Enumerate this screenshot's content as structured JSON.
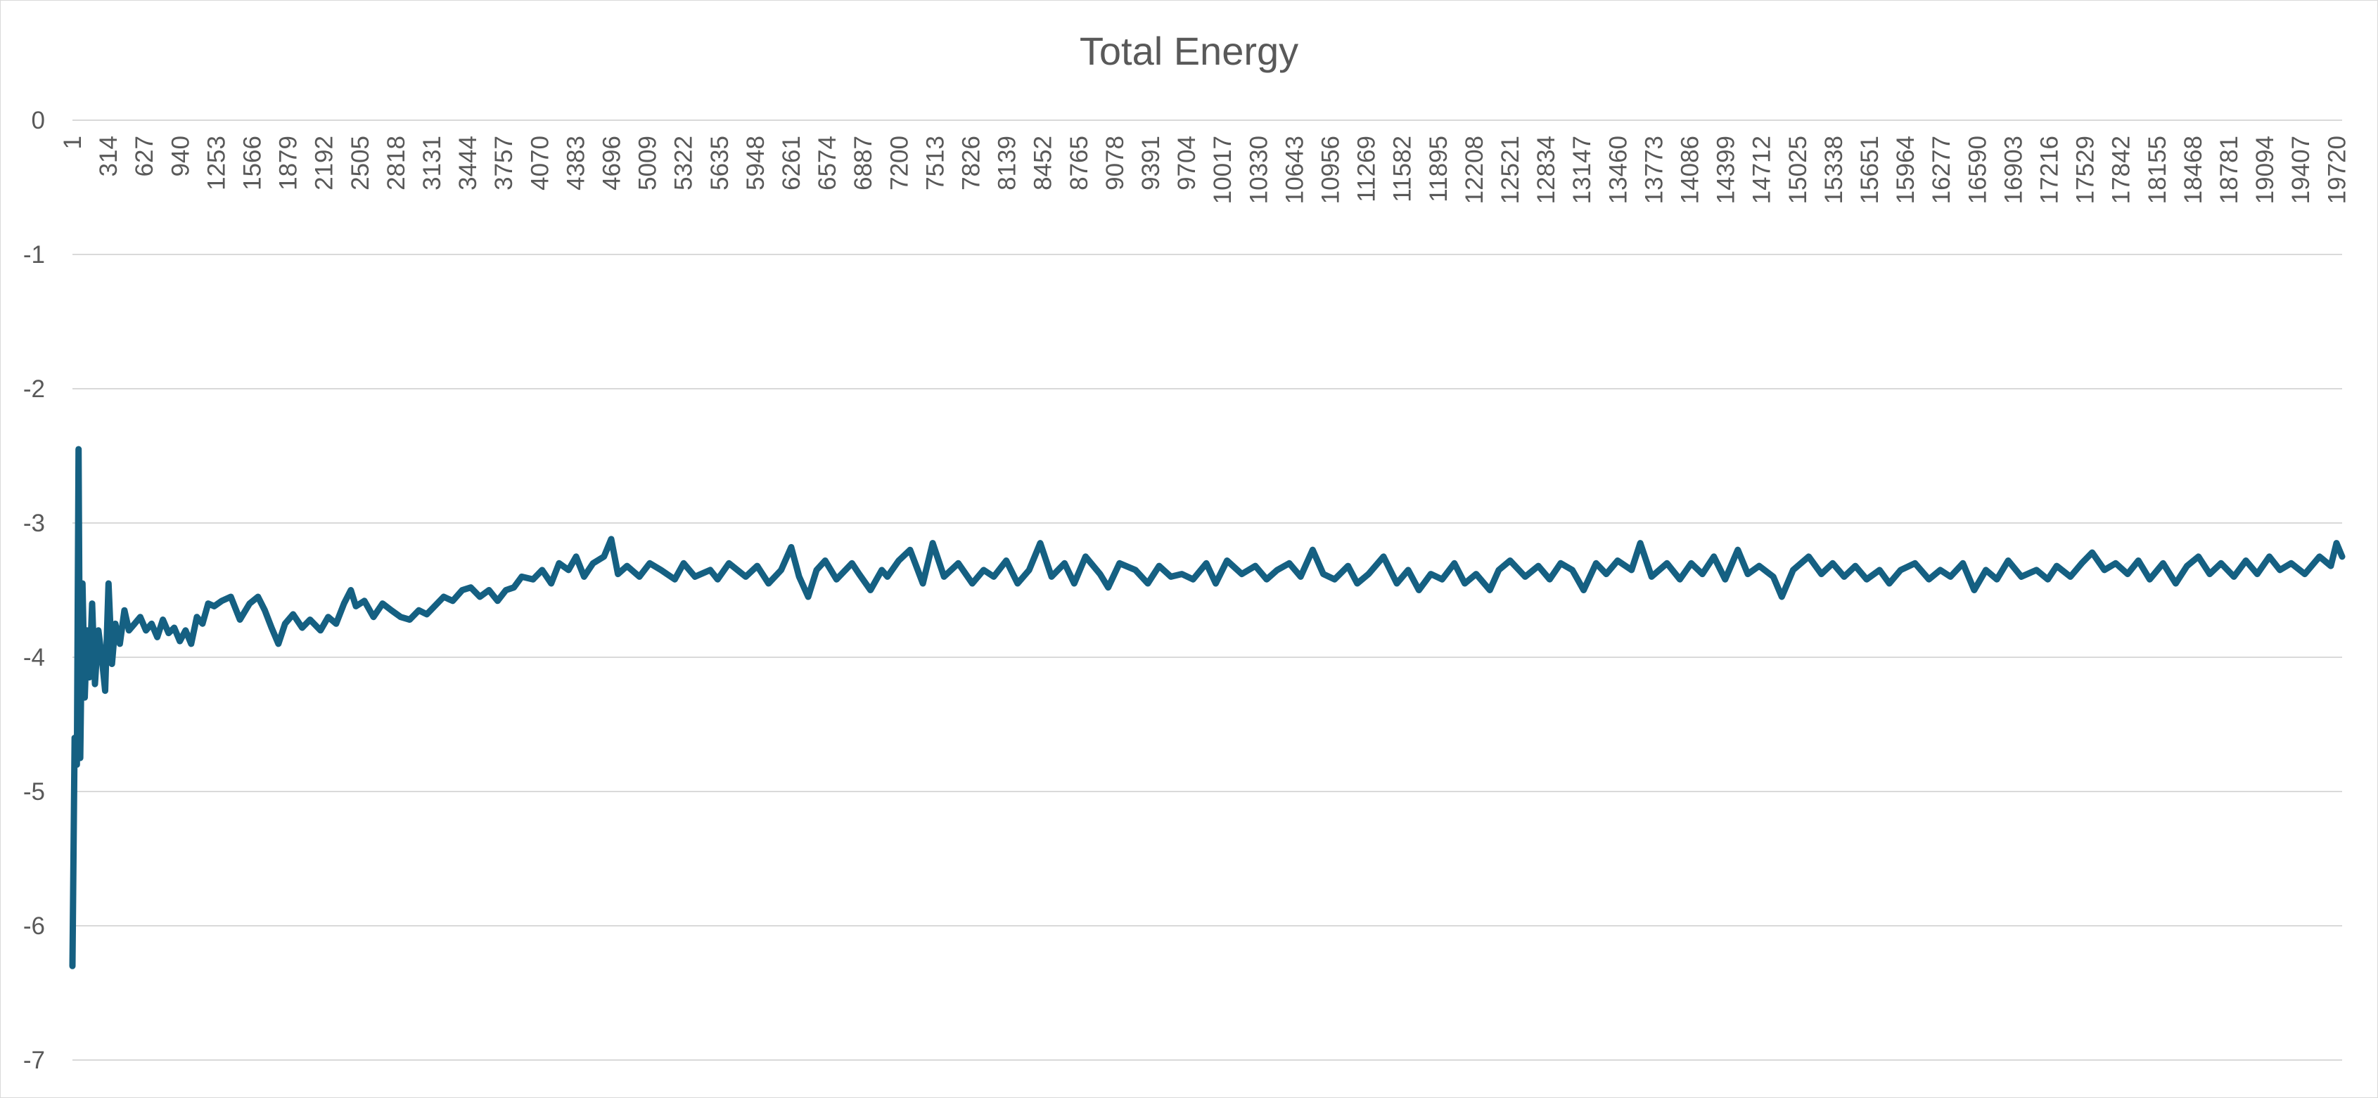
{
  "chart_data": {
    "type": "line",
    "title": "Total Energy",
    "xlabel": "",
    "ylabel": "",
    "ylim": [
      -7,
      0
    ],
    "y_ticks": [
      "0",
      "-1",
      "-2",
      "-3",
      "-4",
      "-5",
      "-6",
      "-7"
    ],
    "x_ticks": [
      "1",
      "314",
      "627",
      "940",
      "1253",
      "1566",
      "1879",
      "2192",
      "2505",
      "2818",
      "3131",
      "3444",
      "3757",
      "4070",
      "4383",
      "4696",
      "5009",
      "5322",
      "5635",
      "5948",
      "6261",
      "6574",
      "6887",
      "7200",
      "7513",
      "7826",
      "8139",
      "8452",
      "8765",
      "9078",
      "9391",
      "9704",
      "10017",
      "10330",
      "10643",
      "10956",
      "11269",
      "11582",
      "11895",
      "12208",
      "12521",
      "12834",
      "13147",
      "13460",
      "13773",
      "14086",
      "14399",
      "14712",
      "15025",
      "15338",
      "15651",
      "15964",
      "16277",
      "16590",
      "16903",
      "17216",
      "17529",
      "17842",
      "18155",
      "18468",
      "18781",
      "19094",
      "19407",
      "19720"
    ],
    "xlim": [
      1,
      20050
    ],
    "grid": true,
    "legend": "none",
    "series": [
      {
        "color": "#156082",
        "points": [
          [
            1,
            -6.3
          ],
          [
            20,
            -4.6
          ],
          [
            40,
            -4.8
          ],
          [
            55,
            -2.45
          ],
          [
            70,
            -4.75
          ],
          [
            90,
            -3.45
          ],
          [
            110,
            -4.3
          ],
          [
            130,
            -3.8
          ],
          [
            150,
            -4.15
          ],
          [
            175,
            -3.6
          ],
          [
            200,
            -4.2
          ],
          [
            230,
            -3.8
          ],
          [
            260,
            -4.0
          ],
          [
            290,
            -4.25
          ],
          [
            320,
            -3.45
          ],
          [
            350,
            -4.05
          ],
          [
            380,
            -3.75
          ],
          [
            420,
            -3.9
          ],
          [
            460,
            -3.65
          ],
          [
            500,
            -3.8
          ],
          [
            550,
            -3.75
          ],
          [
            600,
            -3.7
          ],
          [
            650,
            -3.8
          ],
          [
            700,
            -3.75
          ],
          [
            750,
            -3.85
          ],
          [
            800,
            -3.72
          ],
          [
            850,
            -3.82
          ],
          [
            900,
            -3.78
          ],
          [
            950,
            -3.88
          ],
          [
            1000,
            -3.8
          ],
          [
            1050,
            -3.9
          ],
          [
            1100,
            -3.7
          ],
          [
            1150,
            -3.75
          ],
          [
            1200,
            -3.6
          ],
          [
            1253,
            -3.62
          ],
          [
            1320,
            -3.58
          ],
          [
            1400,
            -3.55
          ],
          [
            1480,
            -3.72
          ],
          [
            1566,
            -3.6
          ],
          [
            1640,
            -3.55
          ],
          [
            1700,
            -3.65
          ],
          [
            1760,
            -3.78
          ],
          [
            1820,
            -3.9
          ],
          [
            1879,
            -3.75
          ],
          [
            1950,
            -3.68
          ],
          [
            2030,
            -3.78
          ],
          [
            2100,
            -3.72
          ],
          [
            2192,
            -3.8
          ],
          [
            2260,
            -3.7
          ],
          [
            2330,
            -3.75
          ],
          [
            2400,
            -3.6
          ],
          [
            2460,
            -3.5
          ],
          [
            2505,
            -3.62
          ],
          [
            2580,
            -3.58
          ],
          [
            2660,
            -3.7
          ],
          [
            2740,
            -3.6
          ],
          [
            2818,
            -3.65
          ],
          [
            2900,
            -3.7
          ],
          [
            2980,
            -3.72
          ],
          [
            3060,
            -3.65
          ],
          [
            3131,
            -3.68
          ],
          [
            3200,
            -3.62
          ],
          [
            3280,
            -3.55
          ],
          [
            3360,
            -3.58
          ],
          [
            3444,
            -3.5
          ],
          [
            3520,
            -3.48
          ],
          [
            3600,
            -3.55
          ],
          [
            3680,
            -3.5
          ],
          [
            3757,
            -3.58
          ],
          [
            3830,
            -3.5
          ],
          [
            3900,
            -3.48
          ],
          [
            3970,
            -3.4
          ],
          [
            4070,
            -3.42
          ],
          [
            4150,
            -3.35
          ],
          [
            4230,
            -3.45
          ],
          [
            4300,
            -3.3
          ],
          [
            4383,
            -3.35
          ],
          [
            4450,
            -3.25
          ],
          [
            4520,
            -3.4
          ],
          [
            4600,
            -3.3
          ],
          [
            4696,
            -3.25
          ],
          [
            4760,
            -3.12
          ],
          [
            4820,
            -3.38
          ],
          [
            4900,
            -3.32
          ],
          [
            5009,
            -3.4
          ],
          [
            5100,
            -3.3
          ],
          [
            5200,
            -3.35
          ],
          [
            5322,
            -3.42
          ],
          [
            5400,
            -3.3
          ],
          [
            5500,
            -3.4
          ],
          [
            5635,
            -3.35
          ],
          [
            5700,
            -3.42
          ],
          [
            5800,
            -3.3
          ],
          [
            5948,
            -3.4
          ],
          [
            6050,
            -3.32
          ],
          [
            6150,
            -3.45
          ],
          [
            6261,
            -3.35
          ],
          [
            6350,
            -3.18
          ],
          [
            6420,
            -3.4
          ],
          [
            6500,
            -3.55
          ],
          [
            6574,
            -3.35
          ],
          [
            6650,
            -3.28
          ],
          [
            6750,
            -3.42
          ],
          [
            6887,
            -3.3
          ],
          [
            6950,
            -3.38
          ],
          [
            7050,
            -3.5
          ],
          [
            7150,
            -3.35
          ],
          [
            7200,
            -3.4
          ],
          [
            7300,
            -3.28
          ],
          [
            7400,
            -3.2
          ],
          [
            7513,
            -3.45
          ],
          [
            7600,
            -3.15
          ],
          [
            7700,
            -3.4
          ],
          [
            7826,
            -3.3
          ],
          [
            7950,
            -3.45
          ],
          [
            8050,
            -3.35
          ],
          [
            8139,
            -3.4
          ],
          [
            8250,
            -3.28
          ],
          [
            8350,
            -3.45
          ],
          [
            8452,
            -3.35
          ],
          [
            8550,
            -3.15
          ],
          [
            8650,
            -3.4
          ],
          [
            8765,
            -3.3
          ],
          [
            8850,
            -3.45
          ],
          [
            8950,
            -3.25
          ],
          [
            9078,
            -3.38
          ],
          [
            9150,
            -3.48
          ],
          [
            9250,
            -3.3
          ],
          [
            9391,
            -3.35
          ],
          [
            9500,
            -3.45
          ],
          [
            9600,
            -3.32
          ],
          [
            9704,
            -3.4
          ],
          [
            9800,
            -3.38
          ],
          [
            9900,
            -3.42
          ],
          [
            10017,
            -3.3
          ],
          [
            10100,
            -3.45
          ],
          [
            10200,
            -3.28
          ],
          [
            10330,
            -3.38
          ],
          [
            10450,
            -3.32
          ],
          [
            10550,
            -3.42
          ],
          [
            10643,
            -3.35
          ],
          [
            10750,
            -3.3
          ],
          [
            10850,
            -3.4
          ],
          [
            10956,
            -3.2
          ],
          [
            11050,
            -3.38
          ],
          [
            11150,
            -3.42
          ],
          [
            11269,
            -3.32
          ],
          [
            11350,
            -3.45
          ],
          [
            11450,
            -3.38
          ],
          [
            11582,
            -3.25
          ],
          [
            11700,
            -3.45
          ],
          [
            11800,
            -3.35
          ],
          [
            11895,
            -3.5
          ],
          [
            12000,
            -3.38
          ],
          [
            12100,
            -3.42
          ],
          [
            12208,
            -3.3
          ],
          [
            12300,
            -3.45
          ],
          [
            12400,
            -3.38
          ],
          [
            12521,
            -3.5
          ],
          [
            12600,
            -3.35
          ],
          [
            12700,
            -3.28
          ],
          [
            12834,
            -3.4
          ],
          [
            12950,
            -3.32
          ],
          [
            13050,
            -3.42
          ],
          [
            13147,
            -3.3
          ],
          [
            13250,
            -3.35
          ],
          [
            13350,
            -3.5
          ],
          [
            13460,
            -3.3
          ],
          [
            13550,
            -3.38
          ],
          [
            13650,
            -3.28
          ],
          [
            13773,
            -3.35
          ],
          [
            13850,
            -3.15
          ],
          [
            13950,
            -3.4
          ],
          [
            14086,
            -3.3
          ],
          [
            14200,
            -3.42
          ],
          [
            14300,
            -3.3
          ],
          [
            14399,
            -3.38
          ],
          [
            14500,
            -3.25
          ],
          [
            14600,
            -3.42
          ],
          [
            14712,
            -3.2
          ],
          [
            14800,
            -3.38
          ],
          [
            14900,
            -3.32
          ],
          [
            15025,
            -3.4
          ],
          [
            15100,
            -3.55
          ],
          [
            15200,
            -3.35
          ],
          [
            15338,
            -3.25
          ],
          [
            15450,
            -3.38
          ],
          [
            15550,
            -3.3
          ],
          [
            15651,
            -3.4
          ],
          [
            15750,
            -3.32
          ],
          [
            15850,
            -3.42
          ],
          [
            15964,
            -3.35
          ],
          [
            16050,
            -3.45
          ],
          [
            16150,
            -3.35
          ],
          [
            16277,
            -3.3
          ],
          [
            16400,
            -3.42
          ],
          [
            16500,
            -3.35
          ],
          [
            16590,
            -3.4
          ],
          [
            16700,
            -3.3
          ],
          [
            16800,
            -3.5
          ],
          [
            16903,
            -3.35
          ],
          [
            17000,
            -3.42
          ],
          [
            17100,
            -3.28
          ],
          [
            17216,
            -3.4
          ],
          [
            17350,
            -3.35
          ],
          [
            17450,
            -3.42
          ],
          [
            17529,
            -3.32
          ],
          [
            17650,
            -3.4
          ],
          [
            17750,
            -3.3
          ],
          [
            17842,
            -3.22
          ],
          [
            17950,
            -3.35
          ],
          [
            18050,
            -3.3
          ],
          [
            18155,
            -3.38
          ],
          [
            18250,
            -3.28
          ],
          [
            18350,
            -3.42
          ],
          [
            18468,
            -3.3
          ],
          [
            18580,
            -3.45
          ],
          [
            18680,
            -3.32
          ],
          [
            18781,
            -3.25
          ],
          [
            18880,
            -3.38
          ],
          [
            18980,
            -3.3
          ],
          [
            19094,
            -3.4
          ],
          [
            19200,
            -3.28
          ],
          [
            19300,
            -3.38
          ],
          [
            19407,
            -3.25
          ],
          [
            19500,
            -3.35
          ],
          [
            19600,
            -3.3
          ],
          [
            19720,
            -3.38
          ],
          [
            19850,
            -3.25
          ],
          [
            19950,
            -3.32
          ],
          [
            20000,
            -3.15
          ],
          [
            20050,
            -3.25
          ]
        ]
      }
    ]
  }
}
